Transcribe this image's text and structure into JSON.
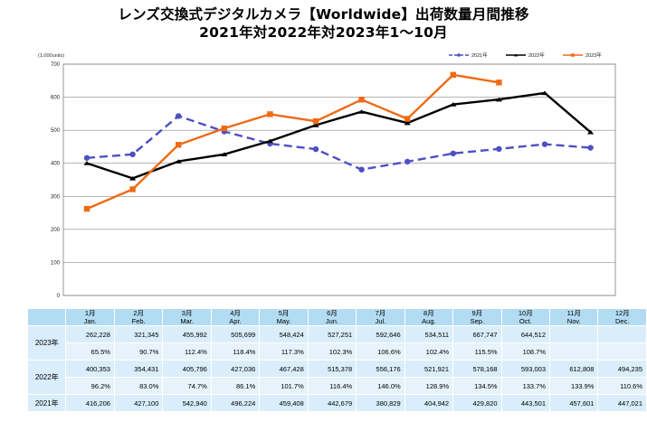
{
  "chart_data": {
    "type": "line",
    "title": "レンズ交換式デジタルカメラ【Worldwide】出荷数量月間推移",
    "subtitle": "2021年対2022年対2023年1～10月",
    "ylabel": "(1,000units)",
    "ylim": [
      0,
      700
    ],
    "yticks": [
      "0",
      "100",
      "200",
      "300",
      "400",
      "500",
      "600",
      "700"
    ],
    "grid": true,
    "legend_position": "top-right",
    "categories": [
      "1月",
      "2月",
      "3月",
      "4月",
      "5月",
      "6月",
      "7月",
      "8月",
      "9月",
      "10月",
      "11月",
      "12月"
    ],
    "categories_en": [
      "Jan.",
      "Feb.",
      "Mar.",
      "Apr.",
      "May.",
      "Jun.",
      "Jul.",
      "Aug.",
      "Sep.",
      "Oct.",
      "Nov.",
      "Dec."
    ],
    "series": [
      {
        "name": "2021年",
        "color": "#4f4fc4",
        "style": "dashed",
        "values": [
          416.206,
          427.1,
          542.94,
          496.224,
          459.408,
          442.679,
          380.829,
          404.942,
          429.82,
          443.501,
          457.601,
          447.021
        ]
      },
      {
        "name": "2022年",
        "color": "#000000",
        "style": "solid",
        "values": [
          400.353,
          354.431,
          405.796,
          427.036,
          467.428,
          515.378,
          556.176,
          521.921,
          578.168,
          593.003,
          612.808,
          494.235
        ]
      },
      {
        "name": "2023年",
        "color": "#ee6a16",
        "style": "solid",
        "values": [
          262.228,
          321.345,
          455.992,
          505.699,
          548.424,
          527.251,
          592.646,
          534.511,
          667.747,
          644.512,
          null,
          null
        ]
      }
    ]
  },
  "table": {
    "row_2023_label": "2023年",
    "row_2022_label": "2022年",
    "row_2021_label": "2021年",
    "units_2023": [
      "262,228",
      "321,345",
      "455,992",
      "505,699",
      "548,424",
      "527,251",
      "592,646",
      "534,511",
      "667,747",
      "644,512",
      "",
      ""
    ],
    "pct_2023": [
      "65.5%",
      "90.7%",
      "112.4%",
      "118.4%",
      "117.3%",
      "102.3%",
      "106.6%",
      "102.4%",
      "115.5%",
      "108.7%",
      "",
      ""
    ],
    "units_2022": [
      "400,353",
      "354,431",
      "405,796",
      "427,036",
      "467,428",
      "515,378",
      "556,176",
      "521,921",
      "578,168",
      "593,003",
      "612,808",
      "494,235"
    ],
    "pct_2022": [
      "96.2%",
      "83.0%",
      "74.7%",
      "86.1%",
      "101.7%",
      "116.4%",
      "146.0%",
      "128.9%",
      "134.5%",
      "133.7%",
      "133.9%",
      "110.6%"
    ],
    "units_2021": [
      "416,206",
      "427,100",
      "542,940",
      "496,224",
      "459,408",
      "442,679",
      "380,829",
      "404,942",
      "429,820",
      "443,501",
      "457,601",
      "447,021"
    ]
  }
}
